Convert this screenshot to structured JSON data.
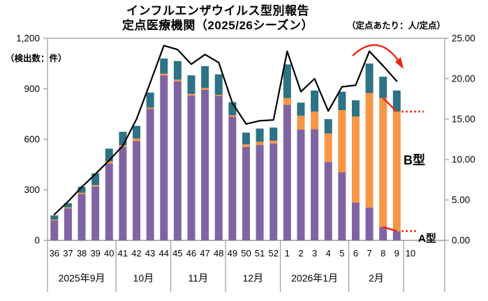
{
  "title": {
    "line1": "インフルエンザウイルス型別報告",
    "line2": "定点医療機関（2025/26シーズン）"
  },
  "axis_units": {
    "left": "（検出数：件）",
    "right": "（定点あたり：人/定点）"
  },
  "annotations": {
    "b_type_label": "B型",
    "a_type_label": "A型"
  },
  "colors": {
    "a_type_purple": "#8064A2",
    "b_type_orange": "#F79646",
    "other_teal": "#2D7285",
    "trend_line": "#000000",
    "annotation_red": "#F02311",
    "axis_gray": "#9B9B9B",
    "text_black": "#000000"
  },
  "chart_data": {
    "type": "bar",
    "subtype": "stacked bars (left axis, 検出数 件) + line (right axis, 定点あたり 人/定点)",
    "week_labels": [
      "36",
      "37",
      "38",
      "39",
      "40",
      "41",
      "42",
      "43",
      "44",
      "45",
      "46",
      "47",
      "48",
      "49",
      "50",
      "51",
      "52",
      "1",
      "2",
      "3",
      "4",
      "5",
      "6",
      "7",
      "8",
      "9"
    ],
    "trailing_week_label": "10",
    "month_groups": [
      {
        "label": "2025年9月",
        "weeks": 5
      },
      {
        "label": "10月",
        "weeks": 4
      },
      {
        "label": "11月",
        "weeks": 4
      },
      {
        "label": "12月",
        "weeks": 4
      },
      {
        "label": "2026年1月",
        "weeks": 5
      },
      {
        "label": "2月",
        "weeks": 4
      }
    ],
    "series": [
      {
        "name": "A型",
        "color_key": "a_type_purple",
        "values": [
          118,
          190,
          275,
          320,
          455,
          555,
          590,
          780,
          980,
          945,
          860,
          895,
          858,
          735,
          555,
          568,
          575,
          805,
          658,
          660,
          465,
          405,
          225,
          195,
          80,
          55
        ]
      },
      {
        "name": "B型",
        "color_key": "b_type_orange",
        "values": [
          5,
          6,
          8,
          8,
          15,
          10,
          15,
          8,
          10,
          10,
          10,
          10,
          6,
          8,
          15,
          18,
          17,
          40,
          82,
          105,
          170,
          368,
          510,
          680,
          765,
          710
        ]
      },
      {
        "name": "",
        "color_key": "other_teal",
        "values": [
          25,
          25,
          35,
          70,
          75,
          80,
          75,
          90,
          90,
          110,
          110,
          130,
          122,
          78,
          70,
          78,
          78,
          200,
          78,
          125,
          85,
          110,
          97,
          175,
          127,
          125
        ]
      }
    ],
    "line_series": {
      "name": "（定点あたり：人/定点）",
      "color_key": "trend_line",
      "values": [
        3.2,
        4.8,
        6.6,
        8.2,
        9.9,
        11.7,
        15.0,
        19.5,
        24.1,
        23.6,
        21.8,
        23.0,
        22.0,
        17.0,
        14.4,
        14.8,
        14.9,
        23.4,
        18.4,
        20.0,
        16.0,
        19.0,
        19.2,
        23.4,
        21.6,
        19.7
      ]
    },
    "y_left": {
      "min": 0,
      "max": 1200,
      "tick_values": [
        0,
        300,
        600,
        900,
        1200
      ],
      "tick_labels": [
        "0",
        "300",
        "600",
        "900",
        "1,200"
      ]
    },
    "y_right": {
      "min": 0,
      "max": 25,
      "tick_values": [
        0,
        5,
        10,
        15,
        20,
        25
      ],
      "tick_labels": [
        "0.00",
        "5.00",
        "10.00",
        "15.00",
        "20.00",
        "25.00"
      ]
    },
    "grid": "none (ticks only)",
    "legend": "none (B型 / A型 red dotted callouts on last bars, red declining curved arrow over line peak)"
  }
}
